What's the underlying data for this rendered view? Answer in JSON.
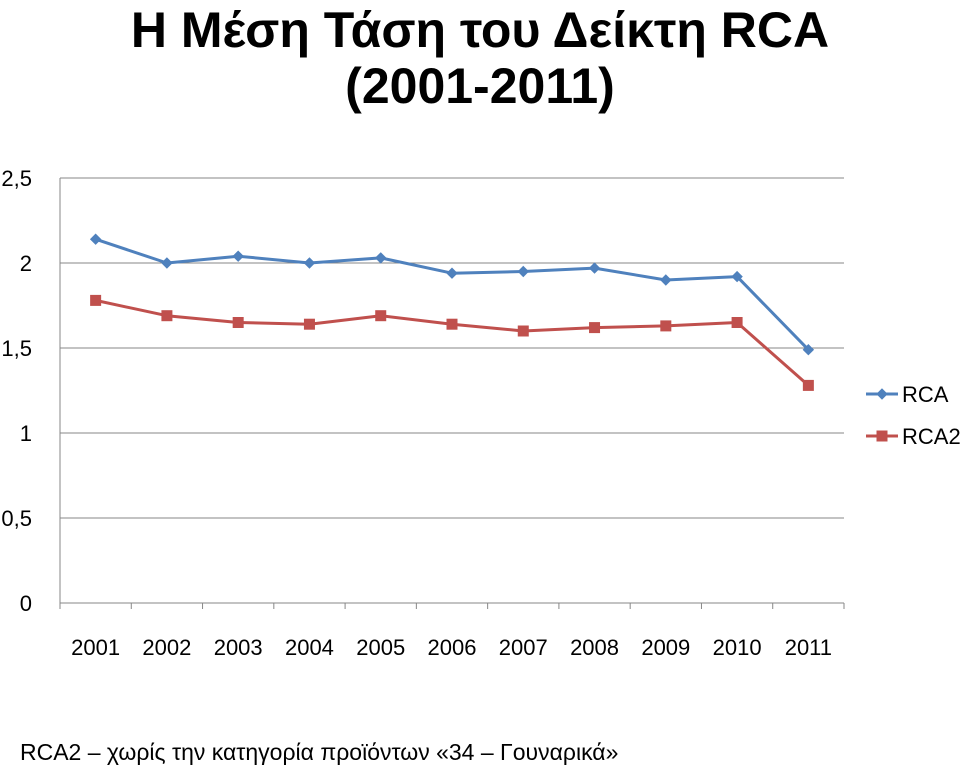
{
  "slide": {
    "title_line1": "Η Μέση Τάση του Δείκτη RCA",
    "title_line2": "(2001-2011)",
    "footnote": "RCA2 – χωρίς την κατηγορία προϊόντων «34 – Γουναρικά»"
  },
  "chart_data": {
    "type": "line",
    "title": "",
    "xlabel": "",
    "ylabel": "",
    "categories": [
      "2001",
      "2002",
      "2003",
      "2004",
      "2005",
      "2006",
      "2007",
      "2008",
      "2009",
      "2010",
      "2011"
    ],
    "ylim": [
      0,
      2.5
    ],
    "yticks": [
      0,
      0.5,
      1,
      1.5,
      2,
      2.5
    ],
    "ytick_labels": [
      "0",
      "0,5",
      "1",
      "1,5",
      "2",
      "2,5"
    ],
    "grid": true,
    "legend_position": "right",
    "series": [
      {
        "name": "RCA",
        "color": "#4F81BD",
        "marker": "diamond",
        "values": [
          2.14,
          2.0,
          2.04,
          2.0,
          2.03,
          1.94,
          1.95,
          1.97,
          1.9,
          1.92,
          1.49
        ]
      },
      {
        "name": "RCA2",
        "color": "#C0504D",
        "marker": "square",
        "values": [
          1.78,
          1.69,
          1.65,
          1.64,
          1.69,
          1.64,
          1.6,
          1.62,
          1.63,
          1.65,
          1.28
        ]
      }
    ]
  }
}
